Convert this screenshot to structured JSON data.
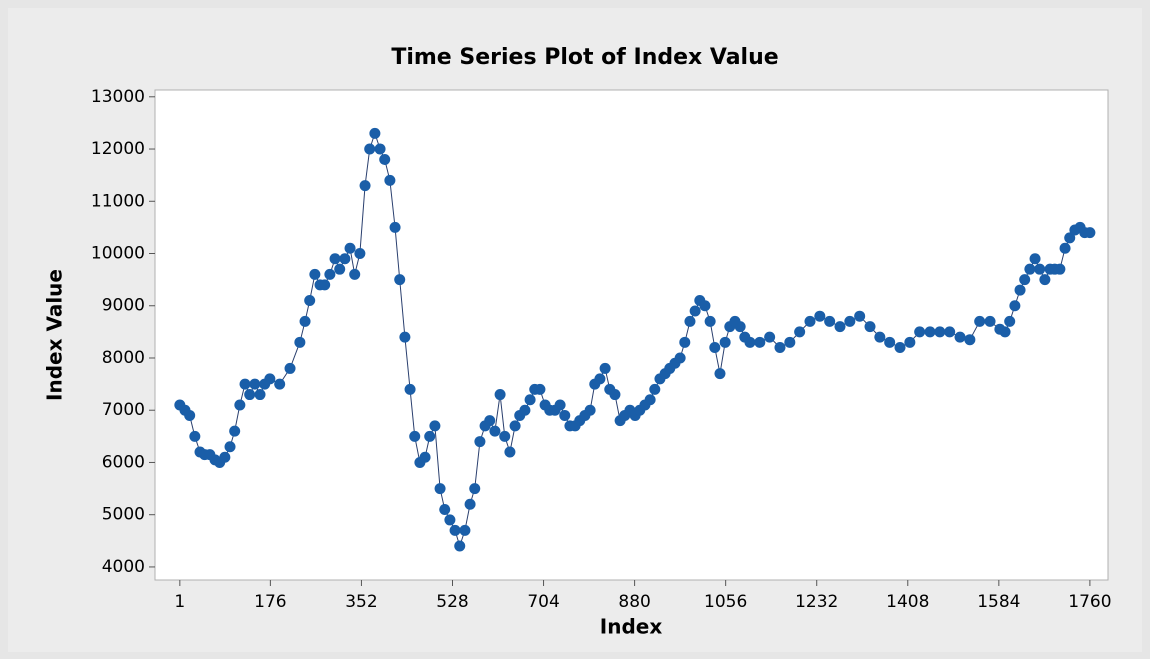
{
  "chart_data": {
    "type": "scatter",
    "title": "Time Series Plot of Index Value",
    "x_label": "Index",
    "y_label": "Index Value",
    "color": "#1a5ea8",
    "connect": true,
    "xlim": [
      -47,
      1795
    ],
    "ylim": [
      3750,
      13130
    ],
    "xticks": [
      1,
      176,
      352,
      528,
      704,
      880,
      1056,
      1232,
      1408,
      1584,
      1760
    ],
    "yticks": [
      4000,
      5000,
      6000,
      7000,
      8000,
      9000,
      10000,
      11000,
      12000,
      13000
    ],
    "x": [
      1,
      11,
      20,
      30,
      40,
      49,
      59,
      69,
      78,
      88,
      98,
      107,
      117,
      127,
      136,
      146,
      156,
      165,
      175,
      194,
      214,
      233,
      243,
      252,
      262,
      272,
      281,
      291,
      301,
      310,
      320,
      330,
      339,
      349,
      359,
      368,
      378,
      388,
      397,
      407,
      417,
      426,
      436,
      446,
      455,
      465,
      475,
      484,
      494,
      504,
      513,
      523,
      533,
      542,
      552,
      562,
      571,
      581,
      591,
      600,
      610,
      620,
      629,
      639,
      649,
      658,
      668,
      678,
      687,
      697,
      707,
      716,
      726,
      736,
      745,
      755,
      765,
      774,
      784,
      794,
      803,
      813,
      823,
      832,
      842,
      852,
      861,
      871,
      881,
      890,
      900,
      910,
      919,
      929,
      939,
      948,
      958,
      968,
      977,
      987,
      997,
      1006,
      1016,
      1026,
      1035,
      1045,
      1055,
      1064,
      1074,
      1084,
      1093,
      1103,
      1122,
      1141,
      1161,
      1180,
      1199,
      1219,
      1238,
      1257,
      1277,
      1296,
      1315,
      1335,
      1354,
      1373,
      1393,
      1412,
      1431,
      1451,
      1470,
      1489,
      1509,
      1528,
      1547,
      1567,
      1586,
      1596,
      1605,
      1615,
      1625,
      1634,
      1644,
      1654,
      1663,
      1673,
      1683,
      1692,
      1702,
      1712,
      1721,
      1731,
      1741,
      1750,
      1760
    ],
    "values": [
      7100,
      7000,
      6900,
      6500,
      6200,
      6150,
      6150,
      6050,
      6000,
      6100,
      6300,
      6600,
      7100,
      7500,
      7300,
      7500,
      7300,
      7500,
      7600,
      7500,
      7800,
      8300,
      8700,
      9100,
      9600,
      9400,
      9400,
      9600,
      9900,
      9700,
      9900,
      10100,
      9600,
      10000,
      11300,
      12000,
      12300,
      12000,
      11800,
      11400,
      10500,
      9500,
      8400,
      7400,
      6500,
      6000,
      6100,
      6500,
      6700,
      5500,
      5100,
      4900,
      4700,
      4400,
      4700,
      5200,
      5500,
      6400,
      6700,
      6800,
      6600,
      7300,
      6500,
      6200,
      6700,
      6900,
      7000,
      7200,
      7400,
      7400,
      7100,
      7000,
      7000,
      7100,
      6900,
      6700,
      6700,
      6800,
      6900,
      7000,
      7500,
      7600,
      7800,
      7400,
      7300,
      6800,
      6900,
      7000,
      6900,
      7000,
      7100,
      7200,
      7400,
      7600,
      7700,
      7800,
      7900,
      8000,
      8300,
      8700,
      8900,
      9100,
      9000,
      8700,
      8200,
      7700,
      8300,
      8600,
      8700,
      8600,
      8400,
      8300,
      8300,
      8400,
      8200,
      8300,
      8500,
      8700,
      8800,
      8700,
      8600,
      8700,
      8800,
      8600,
      8400,
      8300,
      8200,
      8300,
      8500,
      8500,
      8500,
      8500,
      8400,
      8350,
      8700,
      8700,
      8550,
      8500,
      8700,
      9000,
      9300,
      9500,
      9700,
      9900,
      9700,
      9500,
      9700,
      9700,
      9700,
      10100,
      10300,
      10450,
      10500,
      10400,
      10400
    ]
  }
}
